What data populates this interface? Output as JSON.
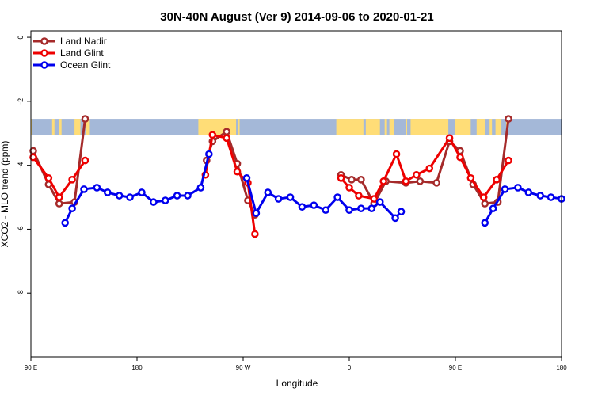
{
  "chart_data": {
    "type": "line",
    "title": "30N-40N August (Ver 9)   2014-09-06 to 2020-01-21",
    "xlabel": "Longitude",
    "ylabel": "XCO2 - MLO trend (ppm)",
    "xlim": [
      90,
      540
    ],
    "ylim": [
      -10,
      0.2
    ],
    "x_ticks": [
      {
        "value": 90,
        "label": "90 E"
      },
      {
        "value": 180,
        "label": "180"
      },
      {
        "value": 270,
        "label": "90 W"
      },
      {
        "value": 360,
        "label": "0"
      },
      {
        "value": 450,
        "label": "90 E"
      },
      {
        "value": 540,
        "label": "180"
      }
    ],
    "y_ticks": [
      {
        "value": 0,
        "label": "0"
      },
      {
        "value": -2,
        "label": "-2"
      },
      {
        "value": -4,
        "label": "-4"
      },
      {
        "value": -6,
        "label": "-6"
      },
      {
        "value": -8,
        "label": "-8"
      }
    ],
    "land_mask_band": {
      "y_top": -2.55,
      "y_bottom": -3.05,
      "land_color": "#ffdd77",
      "ocean_color": "#a4b8d8"
    },
    "legend_position": "top-left",
    "series": [
      {
        "name": "Land Nadir",
        "color": "#a52a2a",
        "segments": [
          [
            [
              92,
              -3.55
            ],
            [
              105,
              -4.6
            ],
            [
              114,
              -5.2
            ],
            [
              127,
              -5.15
            ],
            [
              136,
              -2.55
            ]
          ],
          [
            [
              239,
              -3.85
            ],
            [
              244,
              -3.25
            ],
            [
              256,
              -2.95
            ],
            [
              265,
              -3.95
            ],
            [
              274,
              -5.1
            ],
            [
              280,
              -5.55
            ]
          ],
          [
            [
              353,
              -4.3
            ],
            [
              362,
              -4.45
            ],
            [
              370,
              -4.45
            ],
            [
              381,
              -5.2
            ],
            [
              391,
              -4.5
            ],
            [
              408,
              -4.55
            ],
            [
              420,
              -4.5
            ],
            [
              434,
              -4.55
            ],
            [
              445,
              -3.25
            ],
            [
              454,
              -3.55
            ],
            [
              465,
              -4.6
            ],
            [
              475,
              -5.2
            ],
            [
              486,
              -5.15
            ],
            [
              495,
              -2.55
            ]
          ]
        ]
      },
      {
        "name": "Land Glint",
        "color": "#ee0000",
        "segments": [
          [
            [
              92,
              -3.75
            ],
            [
              105,
              -4.4
            ],
            [
              114,
              -5.0
            ],
            [
              125,
              -4.45
            ],
            [
              136,
              -3.85
            ]
          ],
          [
            [
              238,
              -4.3
            ],
            [
              244,
              -3.05
            ],
            [
              256,
              -3.15
            ],
            [
              265,
              -4.2
            ],
            [
              274,
              -4.55
            ],
            [
              280,
              -6.15
            ]
          ],
          [
            [
              353,
              -4.4
            ],
            [
              360,
              -4.7
            ],
            [
              368,
              -4.95
            ],
            [
              381,
              -5.05
            ],
            [
              389,
              -4.5
            ],
            [
              400,
              -3.65
            ],
            [
              408,
              -4.5
            ],
            [
              417,
              -4.3
            ],
            [
              428,
              -4.1
            ],
            [
              445,
              -3.15
            ],
            [
              454,
              -3.75
            ],
            [
              463,
              -4.4
            ],
            [
              474,
              -5.0
            ],
            [
              485,
              -4.45
            ],
            [
              495,
              -3.85
            ]
          ]
        ]
      },
      {
        "name": "Ocean Glint",
        "color": "#0000ee",
        "segments": [
          [
            [
              119,
              -5.8
            ],
            [
              125,
              -5.35
            ],
            [
              135,
              -4.75
            ],
            [
              146,
              -4.7
            ],
            [
              155,
              -4.85
            ],
            [
              165,
              -4.95
            ],
            [
              174,
              -5.0
            ],
            [
              184,
              -4.85
            ],
            [
              194,
              -5.15
            ],
            [
              204,
              -5.1
            ],
            [
              214,
              -4.95
            ],
            [
              223,
              -4.95
            ],
            [
              234,
              -4.7
            ],
            [
              241,
              -3.65
            ]
          ],
          [
            [
              273,
              -4.4
            ],
            [
              281,
              -5.5
            ],
            [
              291,
              -4.85
            ],
            [
              300,
              -5.05
            ],
            [
              310,
              -5.0
            ],
            [
              320,
              -5.3
            ],
            [
              330,
              -5.25
            ],
            [
              340,
              -5.4
            ],
            [
              350,
              -5.0
            ],
            [
              360,
              -5.4
            ],
            [
              370,
              -5.35
            ],
            [
              379,
              -5.35
            ],
            [
              386,
              -5.15
            ],
            [
              399,
              -5.65
            ],
            [
              404,
              -5.45
            ]
          ],
          [
            [
              475,
              -5.8
            ],
            [
              482,
              -5.35
            ],
            [
              492,
              -4.75
            ],
            [
              503,
              -4.7
            ],
            [
              512,
              -4.85
            ],
            [
              522,
              -4.95
            ],
            [
              531,
              -5.0
            ],
            [
              540,
              -5.05
            ]
          ]
        ]
      }
    ]
  }
}
